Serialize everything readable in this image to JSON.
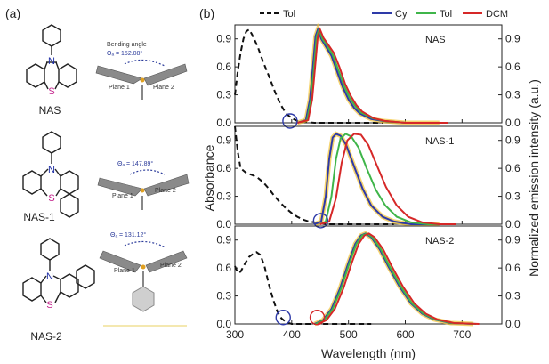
{
  "panel_a": {
    "letter": "(a)",
    "molecules": [
      {
        "name": "NAS",
        "angle_text": "Θₐ = 152.08°",
        "bending_label": "Bending angle",
        "plane1": "Plane 1",
        "plane2": "Plane 2"
      },
      {
        "name": "NAS-1",
        "angle_text": "Θₐ = 147.89°",
        "plane1": "Plane 1",
        "plane2": "Plane 2"
      },
      {
        "name": "NAS-2",
        "angle_text": "Θₐ = 131.12°",
        "plane1": "Plane 1",
        "plane2": "Plane 2"
      }
    ],
    "atom_n": "N",
    "atom_s": "S"
  },
  "chart_data": {
    "type": "line",
    "panel_letter": "(b)",
    "xlabel": "Wavelength (nm)",
    "ylabel_left": "Absorbance",
    "ylabel_right": "Normalized emission intensity (a.u.)",
    "xlim": [
      300,
      770
    ],
    "ylim": [
      0,
      1.05
    ],
    "xticks": [
      "300",
      "400",
      "500",
      "600",
      "700"
    ],
    "yticks": [
      "0.0",
      "0.3",
      "0.6",
      "0.9"
    ],
    "legend": [
      {
        "label": "Tol",
        "color": "#111111",
        "dash": true
      },
      {
        "label": "Cy",
        "color": "#2e3aa8",
        "dash": false
      },
      {
        "label": "Tol",
        "color": "#3fb54a",
        "dash": false
      },
      {
        "label": "DCM",
        "color": "#d62828",
        "dash": false
      }
    ],
    "colors": {
      "absorption": "#111111",
      "cy": "#2e3aa8",
      "tol": "#3fb54a",
      "dcm": "#d62828",
      "overlay": "#f2c230"
    },
    "subplots": [
      {
        "name": "NAS",
        "absorption": [
          [
            300,
            0.3
          ],
          [
            305,
            0.55
          ],
          [
            310,
            0.75
          ],
          [
            315,
            0.9
          ],
          [
            320,
            0.98
          ],
          [
            325,
            1.0
          ],
          [
            330,
            0.95
          ],
          [
            340,
            0.82
          ],
          [
            350,
            0.65
          ],
          [
            360,
            0.5
          ],
          [
            370,
            0.34
          ],
          [
            380,
            0.2
          ],
          [
            390,
            0.1
          ],
          [
            400,
            0.05
          ],
          [
            410,
            0.02
          ],
          [
            420,
            0.01
          ],
          [
            440,
            0.0
          ],
          [
            560,
            0.0
          ]
        ],
        "circles": [
          {
            "x": 397,
            "y": 0.0,
            "color": "#2e3aa8"
          }
        ],
        "emission": {
          "cy": [
            [
              410,
              0.0
            ],
            [
              425,
              0.03
            ],
            [
              432,
              0.25
            ],
            [
              438,
              0.65
            ],
            [
              442,
              0.93
            ],
            [
              446,
              1.0
            ],
            [
              452,
              0.9
            ],
            [
              460,
              0.82
            ],
            [
              470,
              0.72
            ],
            [
              480,
              0.55
            ],
            [
              490,
              0.38
            ],
            [
              500,
              0.25
            ],
            [
              510,
              0.16
            ],
            [
              520,
              0.1
            ],
            [
              540,
              0.04
            ],
            [
              560,
              0.02
            ],
            [
              600,
              0.0
            ],
            [
              660,
              0.0
            ]
          ],
          "tol": [
            [
              410,
              0.0
            ],
            [
              427,
              0.03
            ],
            [
              434,
              0.25
            ],
            [
              440,
              0.65
            ],
            [
              444,
              0.93
            ],
            [
              448,
              1.0
            ],
            [
              454,
              0.9
            ],
            [
              462,
              0.83
            ],
            [
              472,
              0.73
            ],
            [
              482,
              0.57
            ],
            [
              492,
              0.4
            ],
            [
              502,
              0.27
            ],
            [
              512,
              0.18
            ],
            [
              522,
              0.11
            ],
            [
              542,
              0.05
            ],
            [
              562,
              0.02
            ],
            [
              600,
              0.0
            ],
            [
              670,
              0.0
            ]
          ],
          "dcm": [
            [
              410,
              0.0
            ],
            [
              429,
              0.03
            ],
            [
              436,
              0.25
            ],
            [
              442,
              0.65
            ],
            [
              446,
              0.93
            ],
            [
              450,
              1.0
            ],
            [
              456,
              0.91
            ],
            [
              464,
              0.84
            ],
            [
              474,
              0.75
            ],
            [
              484,
              0.6
            ],
            [
              494,
              0.42
            ],
            [
              504,
              0.29
            ],
            [
              514,
              0.19
            ],
            [
              524,
              0.12
            ],
            [
              544,
              0.05
            ],
            [
              564,
              0.02
            ],
            [
              600,
              0.0
            ],
            [
              675,
              0.0
            ]
          ]
        }
      },
      {
        "name": "NAS-1",
        "absorption": [
          [
            300,
            1.05
          ],
          [
            305,
            0.78
          ],
          [
            310,
            0.6
          ],
          [
            320,
            0.55
          ],
          [
            330,
            0.53
          ],
          [
            340,
            0.5
          ],
          [
            350,
            0.45
          ],
          [
            360,
            0.38
          ],
          [
            370,
            0.3
          ],
          [
            380,
            0.23
          ],
          [
            390,
            0.17
          ],
          [
            400,
            0.12
          ],
          [
            410,
            0.08
          ],
          [
            420,
            0.05
          ],
          [
            430,
            0.03
          ],
          [
            440,
            0.02
          ],
          [
            450,
            0.01
          ],
          [
            460,
            0.0
          ],
          [
            580,
            0.0
          ]
        ],
        "circles": [
          {
            "x": 451,
            "y": 0.02,
            "color": "#2e3aa8"
          }
        ],
        "emission": {
          "cy": [
            [
              440,
              0.0
            ],
            [
              452,
              0.03
            ],
            [
              460,
              0.3
            ],
            [
              466,
              0.7
            ],
            [
              472,
              0.93
            ],
            [
              478,
              0.97
            ],
            [
              486,
              0.95
            ],
            [
              496,
              0.85
            ],
            [
              510,
              0.62
            ],
            [
              525,
              0.38
            ],
            [
              540,
              0.2
            ],
            [
              560,
              0.08
            ],
            [
              580,
              0.03
            ],
            [
              610,
              0.0
            ],
            [
              660,
              0.0
            ]
          ],
          "tol": [
            [
              450,
              0.0
            ],
            [
              460,
              0.03
            ],
            [
              470,
              0.3
            ],
            [
              478,
              0.7
            ],
            [
              486,
              0.92
            ],
            [
              495,
              0.97
            ],
            [
              505,
              0.94
            ],
            [
              518,
              0.82
            ],
            [
              532,
              0.6
            ],
            [
              548,
              0.37
            ],
            [
              565,
              0.2
            ],
            [
              585,
              0.08
            ],
            [
              610,
              0.02
            ],
            [
              640,
              0.0
            ],
            [
              680,
              0.0
            ]
          ],
          "dcm": [
            [
              450,
              0.0
            ],
            [
              466,
              0.03
            ],
            [
              478,
              0.28
            ],
            [
              488,
              0.66
            ],
            [
              498,
              0.9
            ],
            [
              510,
              0.97
            ],
            [
              522,
              0.96
            ],
            [
              535,
              0.85
            ],
            [
              550,
              0.63
            ],
            [
              566,
              0.4
            ],
            [
              585,
              0.2
            ],
            [
              605,
              0.08
            ],
            [
              630,
              0.02
            ],
            [
              660,
              0.0
            ],
            [
              690,
              0.0
            ]
          ]
        }
      },
      {
        "name": "NAS-2",
        "absorption": [
          [
            300,
            0.62
          ],
          [
            305,
            0.55
          ],
          [
            310,
            0.56
          ],
          [
            318,
            0.65
          ],
          [
            325,
            0.72
          ],
          [
            332,
            0.75
          ],
          [
            338,
            0.77
          ],
          [
            345,
            0.74
          ],
          [
            352,
            0.62
          ],
          [
            360,
            0.42
          ],
          [
            368,
            0.25
          ],
          [
            375,
            0.13
          ],
          [
            382,
            0.06
          ],
          [
            390,
            0.02
          ],
          [
            400,
            0.0
          ],
          [
            540,
            0.0
          ]
        ],
        "circles": [
          {
            "x": 385,
            "y": 0.05,
            "color": "#2e3aa8"
          },
          {
            "x": 445,
            "y": 0.05,
            "color": "#d62828"
          }
        ],
        "emission": {
          "cy": [
            [
              440,
              0.0
            ],
            [
              455,
              0.04
            ],
            [
              470,
              0.16
            ],
            [
              485,
              0.38
            ],
            [
              500,
              0.66
            ],
            [
              512,
              0.86
            ],
            [
              522,
              0.95
            ],
            [
              530,
              0.97
            ],
            [
              540,
              0.93
            ],
            [
              555,
              0.8
            ],
            [
              570,
              0.62
            ],
            [
              590,
              0.4
            ],
            [
              610,
              0.22
            ],
            [
              630,
              0.11
            ],
            [
              650,
              0.05
            ],
            [
              680,
              0.01
            ],
            [
              720,
              0.0
            ]
          ],
          "tol": [
            [
              442,
              0.0
            ],
            [
              457,
              0.04
            ],
            [
              472,
              0.16
            ],
            [
              487,
              0.38
            ],
            [
              502,
              0.66
            ],
            [
              514,
              0.86
            ],
            [
              524,
              0.95
            ],
            [
              532,
              0.97
            ],
            [
              542,
              0.93
            ],
            [
              557,
              0.8
            ],
            [
              572,
              0.62
            ],
            [
              592,
              0.4
            ],
            [
              612,
              0.22
            ],
            [
              632,
              0.11
            ],
            [
              652,
              0.05
            ],
            [
              682,
              0.01
            ],
            [
              725,
              0.0
            ]
          ],
          "dcm": [
            [
              446,
              0.0
            ],
            [
              461,
              0.04
            ],
            [
              476,
              0.16
            ],
            [
              491,
              0.38
            ],
            [
              506,
              0.66
            ],
            [
              518,
              0.86
            ],
            [
              528,
              0.95
            ],
            [
              536,
              0.97
            ],
            [
              546,
              0.93
            ],
            [
              561,
              0.8
            ],
            [
              576,
              0.62
            ],
            [
              596,
              0.4
            ],
            [
              616,
              0.22
            ],
            [
              636,
              0.11
            ],
            [
              656,
              0.05
            ],
            [
              686,
              0.01
            ],
            [
              730,
              0.0
            ]
          ]
        }
      }
    ]
  }
}
